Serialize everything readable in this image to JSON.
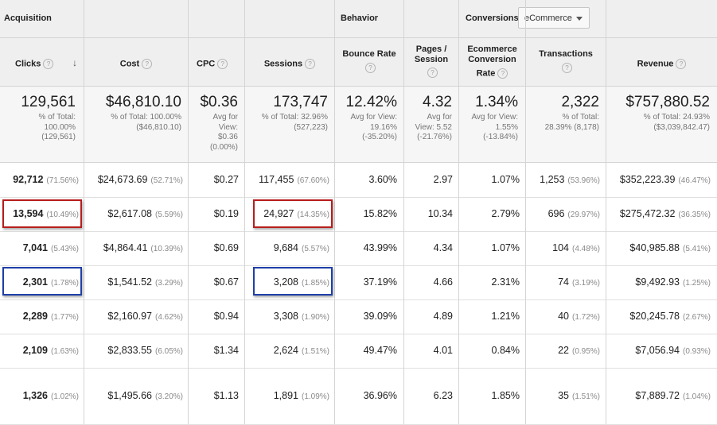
{
  "groups": {
    "acquisition": "Acquisition",
    "behavior": "Behavior",
    "conversions": "Conversions"
  },
  "conversion_select": {
    "value": "eCommerce"
  },
  "columns": {
    "clicks": "Clicks",
    "cost": "Cost",
    "cpc": "CPC",
    "sessions": "Sessions",
    "bounce_1": "Bounce Rate",
    "pages_1": "Pages /",
    "pages_2": "Session",
    "ecr_1": "Ecommerce",
    "ecr_2": "Conversion",
    "ecr_3": "Rate",
    "transactions": "Transactions",
    "revenue": "Revenue"
  },
  "help_icon_glyph": "?",
  "sort_glyph": "↓",
  "totals": {
    "clicks": {
      "value": "129,561",
      "l1": "% of Total:",
      "l2": "100.00%",
      "l3": "(129,561)"
    },
    "cost": {
      "value": "$46,810.10",
      "l1": "% of Total: 100.00%",
      "l2": "($46,810.10)"
    },
    "cpc": {
      "value": "$0.36",
      "l1": "Avg for",
      "l2": "View:",
      "l3": "$0.36",
      "l4": "(0.00%)"
    },
    "sessions": {
      "value": "173,747",
      "l1": "% of Total: 32.96%",
      "l2": "(527,223)"
    },
    "bounce": {
      "value": "12.42%",
      "l1": "Avg for View:",
      "l2": "19.16%",
      "l3": "(-35.20%)"
    },
    "pages": {
      "value": "4.32",
      "l1": "Avg for",
      "l2": "View: 5.52",
      "l3": "(-21.76%)"
    },
    "ecr": {
      "value": "1.34%",
      "l1": "Avg for View:",
      "l2": "1.55%",
      "l3": "(-13.84%)"
    },
    "transactions": {
      "value": "2,322",
      "l1": "% of Total:",
      "l2": "28.39% (8,178)"
    },
    "revenue": {
      "value": "$757,880.52",
      "l1": "% of Total: 24.93%",
      "l2": "($3,039,842.47)"
    }
  },
  "rows": [
    {
      "clicks": "92,712",
      "clicks_pct": "(71.56%)",
      "cost": "$24,673.69",
      "cost_pct": "(52.71%)",
      "cpc": "$0.27",
      "sessions": "117,455",
      "sessions_pct": "(67.60%)",
      "bounce": "3.60%",
      "pages": "2.97",
      "ecr": "1.07%",
      "transactions": "1,253",
      "transactions_pct": "(53.96%)",
      "revenue": "$352,223.39",
      "revenue_pct": "(46.47%)"
    },
    {
      "clicks": "13,594",
      "clicks_pct": "(10.49%)",
      "cost": "$2,617.08",
      "cost_pct": "(5.59%)",
      "cpc": "$0.19",
      "sessions": "24,927",
      "sessions_pct": "(14.35%)",
      "bounce": "15.82%",
      "pages": "10.34",
      "ecr": "2.79%",
      "transactions": "696",
      "transactions_pct": "(29.97%)",
      "revenue": "$275,472.32",
      "revenue_pct": "(36.35%)"
    },
    {
      "clicks": "7,041",
      "clicks_pct": "(5.43%)",
      "cost": "$4,864.41",
      "cost_pct": "(10.39%)",
      "cpc": "$0.69",
      "sessions": "9,684",
      "sessions_pct": "(5.57%)",
      "bounce": "43.99%",
      "pages": "4.34",
      "ecr": "1.07%",
      "transactions": "104",
      "transactions_pct": "(4.48%)",
      "revenue": "$40,985.88",
      "revenue_pct": "(5.41%)"
    },
    {
      "clicks": "2,301",
      "clicks_pct": "(1.78%)",
      "cost": "$1,541.52",
      "cost_pct": "(3.29%)",
      "cpc": "$0.67",
      "sessions": "3,208",
      "sessions_pct": "(1.85%)",
      "bounce": "37.19%",
      "pages": "4.66",
      "ecr": "2.31%",
      "transactions": "74",
      "transactions_pct": "(3.19%)",
      "revenue": "$9,492.93",
      "revenue_pct": "(1.25%)"
    },
    {
      "clicks": "2,289",
      "clicks_pct": "(1.77%)",
      "cost": "$2,160.97",
      "cost_pct": "(4.62%)",
      "cpc": "$0.94",
      "sessions": "3,308",
      "sessions_pct": "(1.90%)",
      "bounce": "39.09%",
      "pages": "4.89",
      "ecr": "1.21%",
      "transactions": "40",
      "transactions_pct": "(1.72%)",
      "revenue": "$20,245.78",
      "revenue_pct": "(2.67%)"
    },
    {
      "clicks": "2,109",
      "clicks_pct": "(1.63%)",
      "cost": "$2,833.55",
      "cost_pct": "(6.05%)",
      "cpc": "$1.34",
      "sessions": "2,624",
      "sessions_pct": "(1.51%)",
      "bounce": "49.47%",
      "pages": "4.01",
      "ecr": "0.84%",
      "transactions": "22",
      "transactions_pct": "(0.95%)",
      "revenue": "$7,056.94",
      "revenue_pct": "(0.93%)"
    },
    {
      "clicks": "1,326",
      "clicks_pct": "(1.02%)",
      "cost": "$1,495.66",
      "cost_pct": "(3.20%)",
      "cpc": "$1.13",
      "sessions": "1,891",
      "sessions_pct": "(1.09%)",
      "bounce": "36.96%",
      "pages": "6.23",
      "ecr": "1.85%",
      "transactions": "35",
      "transactions_pct": "(1.51%)",
      "revenue": "$7,889.72",
      "revenue_pct": "(1.04%)"
    }
  ],
  "highlight_colors": {
    "red": "#b71c1c",
    "blue": "#1e3fa8"
  }
}
